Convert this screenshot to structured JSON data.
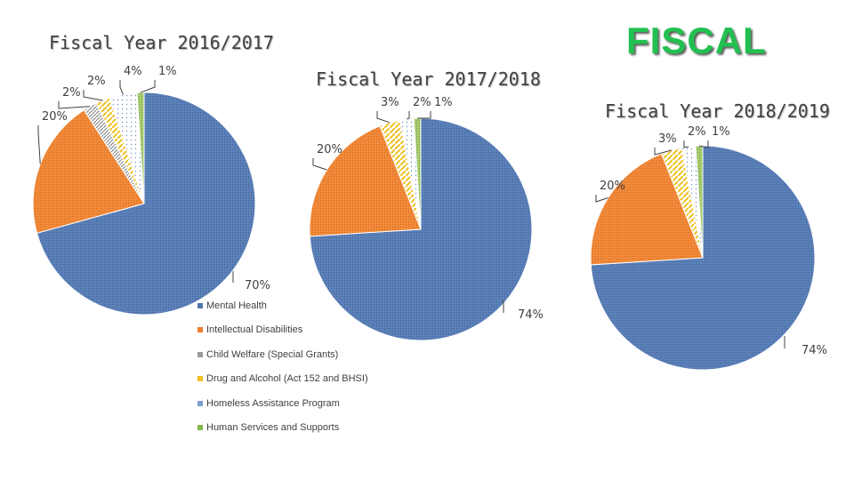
{
  "header": {
    "title": "FISCAL"
  },
  "colors": {
    "mental_health": "#4f75b0",
    "intellectual_disabilities": "#ef7d2b",
    "child_welfare": "#9a9a9a",
    "drug_alcohol": "#f0c020",
    "homeless": "#7aa0d0",
    "human_services": "#86b54a"
  },
  "chart_data": [
    {
      "type": "pie",
      "title": "Fiscal Year 2016/2017",
      "categories": [
        "Mental Health",
        "Intellectual Disabilities",
        "Child Welfare (Special Grants)",
        "Drug and Alcohol (Act 152 and BHSI)",
        "Homeless Assistance Program",
        "Human Services and Supports"
      ],
      "values": [
        70,
        20,
        2,
        2,
        4,
        1
      ],
      "labels": [
        "70%",
        "20%",
        "2%",
        "2%",
        "4%",
        "1%"
      ]
    },
    {
      "type": "pie",
      "title": "Fiscal Year 2017/2018",
      "categories": [
        "Mental Health",
        "Intellectual Disabilities",
        "Child Welfare (Special Grants)",
        "Drug and Alcohol (Act 152 and BHSI)",
        "Homeless Assistance Program",
        "Human Services and Supports"
      ],
      "values": [
        74,
        20,
        0,
        3,
        2,
        1
      ],
      "labels": [
        "74%",
        "20%",
        "",
        "3%",
        "2%",
        "1%"
      ]
    },
    {
      "type": "pie",
      "title": "Fiscal Year 2018/2019",
      "categories": [
        "Mental Health",
        "Intellectual Disabilities",
        "Child Welfare (Special Grants)",
        "Drug and Alcohol (Act 152 and BHSI)",
        "Homeless Assistance Program",
        "Human Services and Supports"
      ],
      "values": [
        74,
        20,
        0,
        3,
        2,
        1
      ],
      "labels": [
        "74%",
        "20%",
        "",
        "3%",
        "2%",
        "1%"
      ]
    }
  ],
  "legend": [
    "Mental Health",
    "Intellectual Disabilities",
    "Child Welfare (Special Grants)",
    "Drug and Alcohol (Act 152 and BHSI)",
    "Homeless Assistance Program",
    "Human Services and Supports"
  ]
}
